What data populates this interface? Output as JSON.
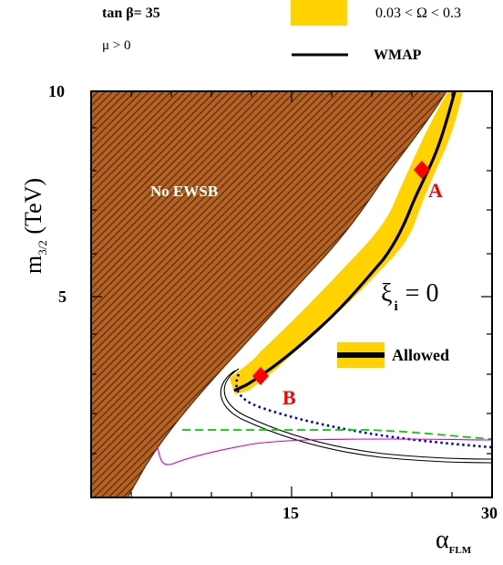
{
  "header": {
    "param_label": "tan β= 35",
    "mu_label": "μ > 0",
    "relic_label": "0.03 < Ω < 0.3",
    "wmap_label": "WMAP"
  },
  "chart_data": {
    "type": "line",
    "xlabel": "α",
    "xlabel_sub": "FLM",
    "ylabel": "m",
    "ylabel_sub": "3/2",
    "ylabel_unit": " (TeV)",
    "xlim": [
      0,
      30
    ],
    "ylim": [
      0,
      10
    ],
    "x_scale": "log",
    "y_scale": "log",
    "x_ticks": [
      {
        "value": 15,
        "label": "15"
      },
      {
        "value": 30,
        "label": "30"
      }
    ],
    "y_ticks": [
      {
        "value": 5,
        "label": "5"
      },
      {
        "value": 10,
        "label": "10"
      }
    ],
    "grid": false,
    "regions": [
      {
        "name": "No EWSB",
        "color": "#b5621e",
        "fill": "hatched"
      }
    ],
    "annotations": {
      "region_label": "No EWSB",
      "xi_label": "ξ",
      "xi_sub": "i",
      "xi_value": "= 0",
      "allowed_label": "Allowed",
      "point_a": "A",
      "point_b": "B"
    },
    "points": [
      {
        "label": "A",
        "x": 25.0,
        "y": 8.1,
        "color": "#ff0000"
      },
      {
        "label": "B",
        "x": 13.7,
        "y": 3.0,
        "color": "#ff0000"
      }
    ],
    "series": [
      {
        "name": "0.03 < Ω < 0.3",
        "style": "band",
        "color": "#ffd200"
      },
      {
        "name": "WMAP",
        "style": "solid",
        "color": "#000000"
      }
    ],
    "colors": {
      "band": "#ffd200",
      "ewsb": "#b5621e",
      "marker": "#ff0000",
      "blue_dots": "#0000cc",
      "green_dash": "#00cc00",
      "magenta": "#cc00cc"
    }
  }
}
